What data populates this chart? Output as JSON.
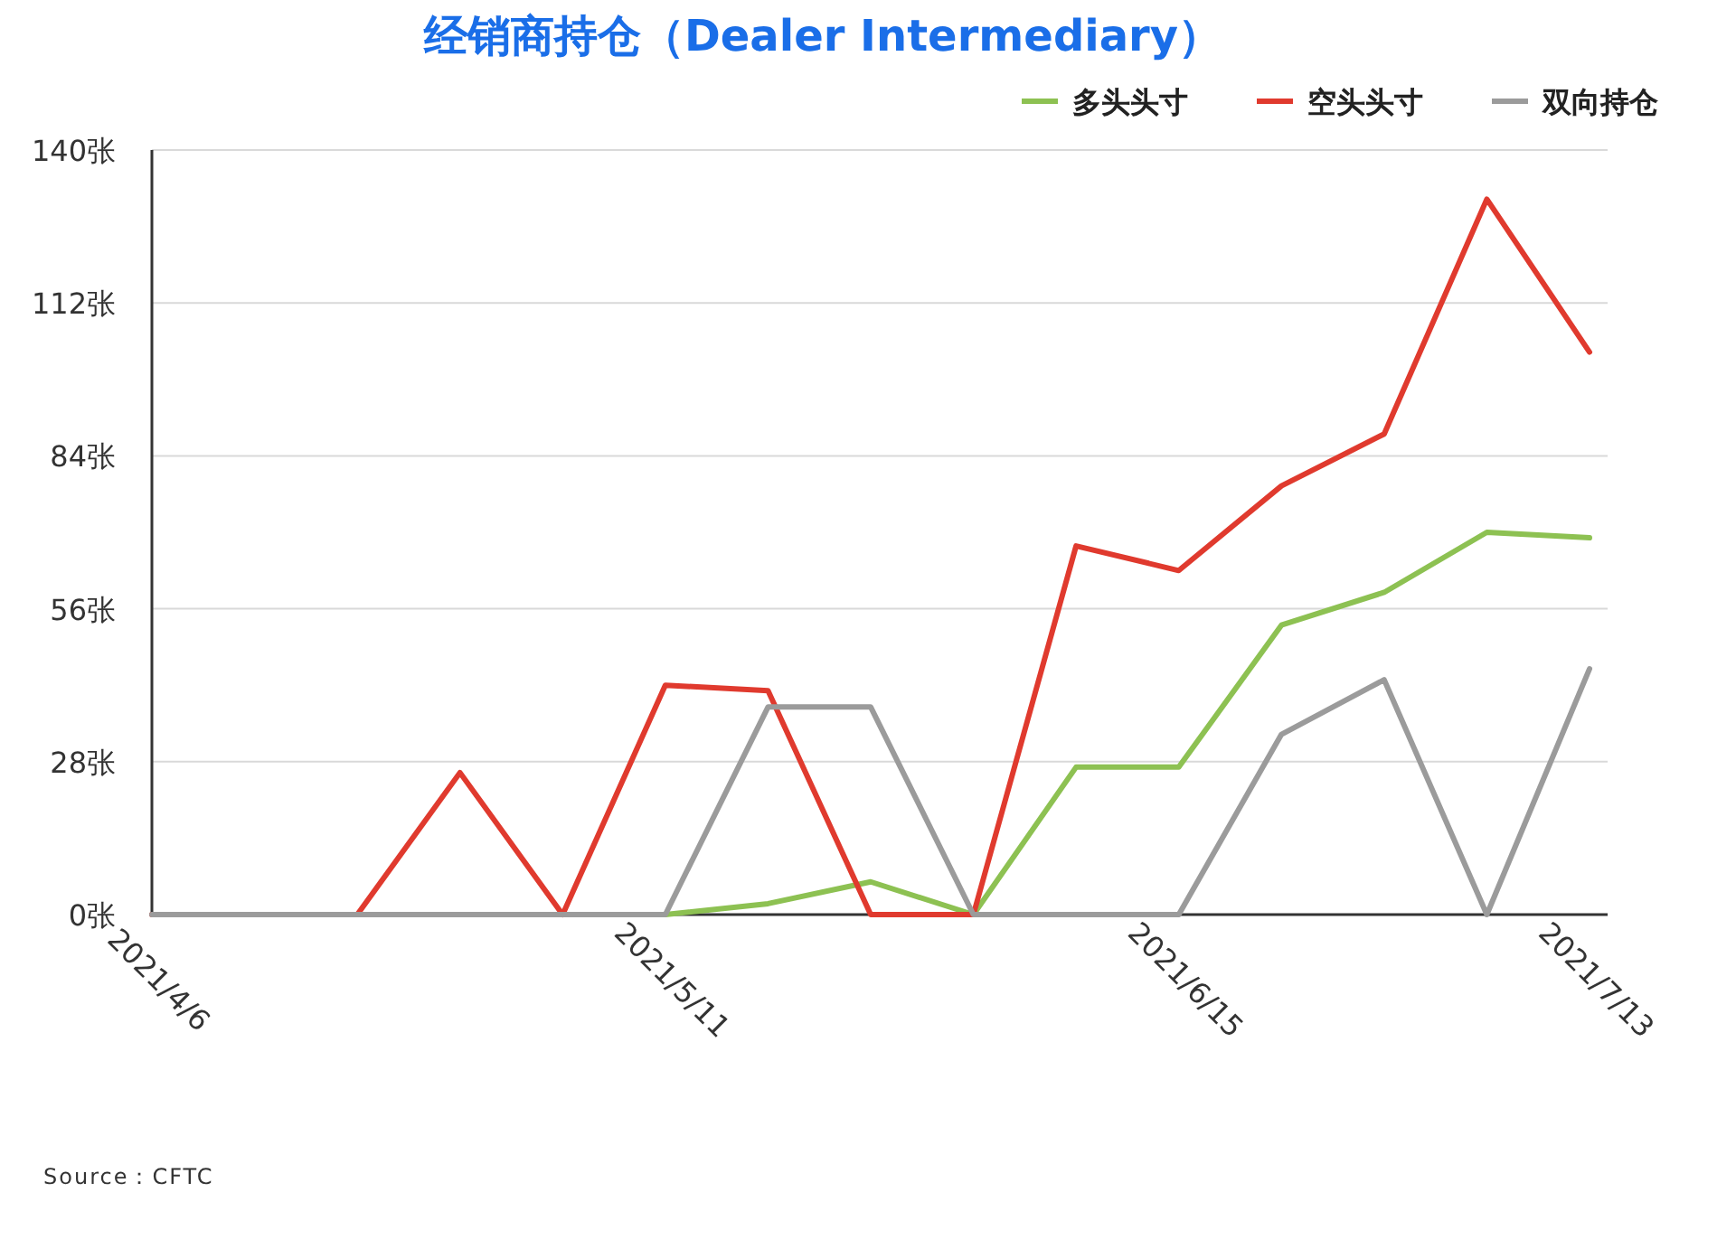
{
  "chart_data": {
    "type": "line",
    "title": "经销商持仓（Dealer Intermediary）",
    "categories": [
      "2021/4/6",
      null,
      null,
      null,
      null,
      "2021/5/11",
      null,
      null,
      null,
      null,
      "2021/6/15",
      null,
      null,
      null,
      "2021/7/13"
    ],
    "series": [
      {
        "name": "多头头寸",
        "color": "#8dc152",
        "values": [
          null,
          null,
          null,
          null,
          0,
          0,
          2,
          6,
          0,
          27,
          27,
          53,
          59,
          70,
          69
        ]
      },
      {
        "name": "空头头寸",
        "color": "#e03a2e",
        "values": [
          0,
          0,
          0,
          26,
          0,
          42,
          41,
          0,
          0,
          67.5,
          63,
          78.5,
          88,
          131,
          103
        ]
      },
      {
        "name": "双向持仓",
        "color": "#9b9b9b",
        "values": [
          0,
          0,
          0,
          0,
          0,
          0,
          38,
          38,
          0,
          0,
          0,
          33,
          43,
          0,
          45
        ]
      }
    ],
    "ylim": [
      0,
      140
    ],
    "yticks": [
      {
        "value": 0,
        "label": "0张"
      },
      {
        "value": 28,
        "label": "28张"
      },
      {
        "value": 56,
        "label": "56张"
      },
      {
        "value": 84,
        "label": "84张"
      },
      {
        "value": 112,
        "label": "112张"
      },
      {
        "value": 140,
        "label": "140张"
      }
    ],
    "grid": "y",
    "legend": "top right",
    "marker": "none",
    "line_style": "solid",
    "annotations": [
      "Source：CFTC"
    ]
  }
}
